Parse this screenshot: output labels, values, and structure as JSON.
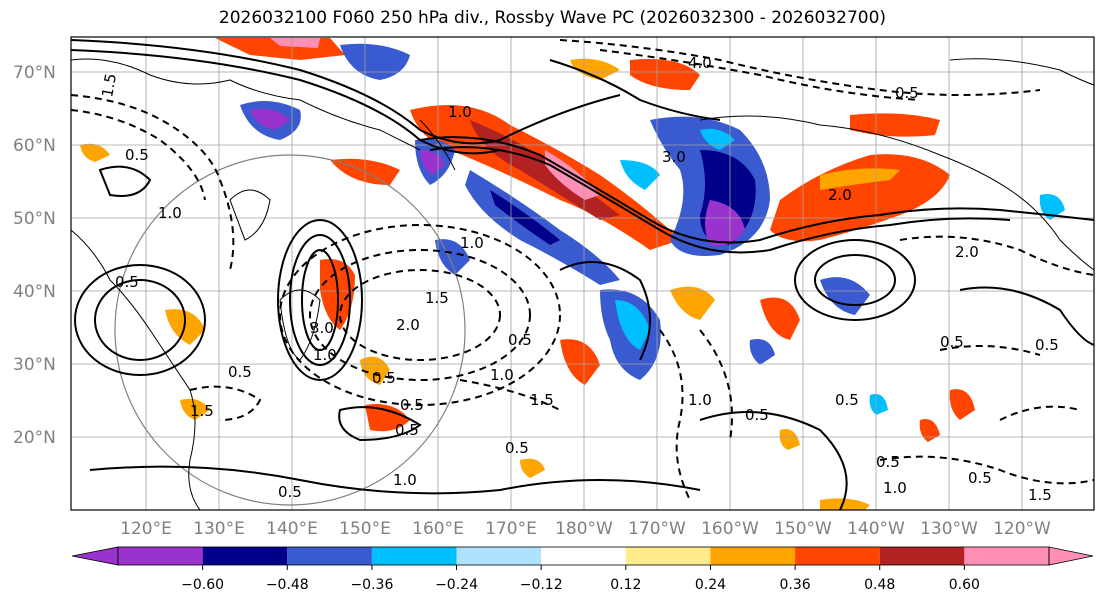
{
  "title": "2026032100 F060 250 hPa div., Rossby Wave PC (2026032300 - 2026032700)",
  "map": {
    "lat_ticks": [
      "70°N",
      "60°N",
      "50°N",
      "40°N",
      "30°N",
      "20°N"
    ],
    "lon_ticks": [
      "120°E",
      "130°E",
      "140°E",
      "150°E",
      "160°E",
      "170°E",
      "180°W",
      "170°W",
      "160°W",
      "150°W",
      "140°W",
      "130°W",
      "120°W"
    ],
    "contour_labels": [
      "1.5",
      "0.5",
      "1.0",
      "2.0",
      "4.0",
      "3.0",
      "0.5",
      "1.0",
      "0.5",
      "1.5",
      "2.0",
      "1.0",
      "0.5",
      "3.0",
      "1.0",
      "0.5",
      "1.5",
      "1.0",
      "0.5",
      "1.5",
      "0.5",
      "2.0",
      "0.5",
      "0.5",
      "0.5",
      "1.0",
      "0.5",
      "1.5",
      "0.5",
      "0.5",
      "1.0",
      "0.5",
      "0.5",
      "1.0",
      "0.5"
    ]
  },
  "colorbar": {
    "ticks": [
      "−0.60",
      "−0.48",
      "−0.36",
      "−0.24",
      "−0.12",
      "0.12",
      "0.24",
      "0.36",
      "0.48",
      "0.60"
    ],
    "colors": [
      "#9a32cd",
      "#00008b",
      "#3a5bd0",
      "#00bfff",
      "#b0e2ff",
      "#ffffff",
      "#ffeb8a",
      "#ffa500",
      "#ff4500",
      "#b22222",
      "#ff8fb5",
      "#ff8fb5"
    ]
  }
}
